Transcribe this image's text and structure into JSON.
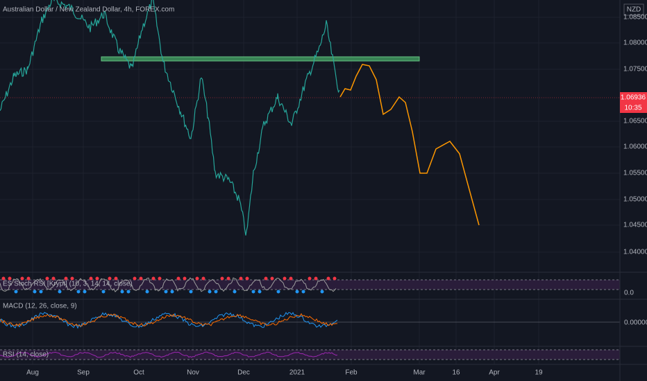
{
  "header": {
    "title": "Australian Dollar / New Zealand Dollar, 4h, FOREX.com"
  },
  "price_axis": {
    "currency": "NZD",
    "labels": [
      "1.08500",
      "1.08000",
      "1.07500",
      "1.06500",
      "1.06000",
      "1.05500",
      "1.05000",
      "1.04500",
      "1.04000"
    ],
    "current_price": "1.06936",
    "countdown": "10:35"
  },
  "time_axis": {
    "labels": [
      "Aug",
      "Sep",
      "Oct",
      "Nov",
      "Dec",
      "2021",
      "Feb",
      "Mar",
      "16",
      "Apr",
      "19"
    ]
  },
  "indicators": [
    {
      "label": "ES Stoch RSI [Krypt] (10, 3, 14, 14, close)",
      "axis_label": "0.0"
    },
    {
      "label": "MACD (12, 26, close, 9)",
      "axis_label": "0.00000"
    },
    {
      "label": "RSI (14, close)"
    }
  ]
}
